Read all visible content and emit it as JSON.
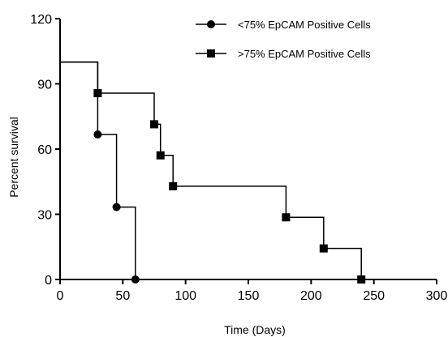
{
  "chart_data": {
    "type": "line",
    "subtype": "kaplan-meier-step",
    "title": "",
    "xlabel": "Time (Days)",
    "ylabel": "Percent survival",
    "xlim": [
      0,
      300
    ],
    "ylim": [
      0,
      120
    ],
    "xticks": [
      0,
      50,
      100,
      150,
      200,
      250,
      300
    ],
    "yticks": [
      0,
      30,
      60,
      90,
      120
    ],
    "grid": false,
    "legend_position": "top-right",
    "series": [
      {
        "name": "<75% EpCAM Positive Cells",
        "marker": "circle",
        "color": "#000000",
        "points": [
          {
            "x": 0,
            "y": 100
          },
          {
            "x": 30,
            "y": 66.7
          },
          {
            "x": 45,
            "y": 33.3
          },
          {
            "x": 60,
            "y": 0
          }
        ]
      },
      {
        "name": ">75% EpCAM Positive Cells",
        "marker": "square",
        "color": "#000000",
        "points": [
          {
            "x": 0,
            "y": 100
          },
          {
            "x": 30,
            "y": 85.7
          },
          {
            "x": 75,
            "y": 71.4
          },
          {
            "x": 80,
            "y": 57.1
          },
          {
            "x": 90,
            "y": 42.9
          },
          {
            "x": 180,
            "y": 28.6
          },
          {
            "x": 210,
            "y": 14.3
          },
          {
            "x": 240,
            "y": 0
          }
        ]
      }
    ]
  }
}
